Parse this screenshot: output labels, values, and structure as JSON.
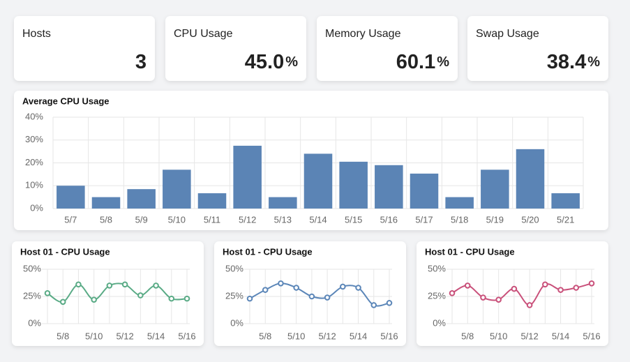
{
  "cards": [
    {
      "title": "Hosts",
      "value": "3"
    },
    {
      "title": "CPU Usage",
      "value": "45.0",
      "unit": "%"
    },
    {
      "title": "Memory Usage",
      "value": "60.1",
      "unit": "%"
    },
    {
      "title": "Swap Usage",
      "value": "38.4",
      "unit": "%"
    }
  ],
  "chart_data": [
    {
      "type": "bar",
      "title": "Average CPU Usage",
      "categories": [
        "5/7",
        "5/8",
        "5/9",
        "5/10",
        "5/11",
        "5/12",
        "5/13",
        "5/14",
        "5/15",
        "5/16",
        "5/17",
        "5/18",
        "5/19",
        "5/20",
        "5/21"
      ],
      "values": [
        10,
        5,
        8.5,
        17,
        6.7,
        27.5,
        5,
        24,
        20.5,
        19,
        15.3,
        5,
        17,
        26,
        6.7
      ],
      "color": "#5b84b5",
      "ylim": [
        0,
        40
      ],
      "yticks": [
        {
          "value": 0,
          "label": "0%"
        },
        {
          "value": 10,
          "label": "10%"
        },
        {
          "value": 20,
          "label": "20%"
        },
        {
          "value": 30,
          "label": "30%"
        },
        {
          "value": 40,
          "label": "40%"
        }
      ],
      "grid": true
    },
    {
      "type": "line",
      "title": "Host 01 - CPU Usage",
      "categories": [
        null,
        "5/8",
        null,
        "5/10",
        null,
        "5/12",
        null,
        "5/14",
        null,
        "5/16"
      ],
      "values": [
        28,
        20,
        36,
        22,
        35,
        36,
        26,
        35,
        23,
        23
      ],
      "color": "#5aab86",
      "ylim": [
        0,
        50
      ],
      "yticks": [
        {
          "value": 0,
          "label": "0%"
        },
        {
          "value": 25,
          "label": "25%"
        },
        {
          "value": 50,
          "label": "50%"
        }
      ],
      "grid": true
    },
    {
      "type": "line",
      "title": "Host 01 - CPU Usage",
      "categories": [
        null,
        "5/8",
        null,
        "5/10",
        null,
        "5/12",
        null,
        "5/14",
        null,
        "5/16"
      ],
      "values": [
        23,
        31,
        37,
        33,
        25,
        24,
        34,
        33,
        17,
        19
      ],
      "color": "#5b86b8",
      "ylim": [
        0,
        50
      ],
      "yticks": [
        {
          "value": 0,
          "label": "0%"
        },
        {
          "value": 25,
          "label": "25%"
        },
        {
          "value": 50,
          "label": "50%"
        }
      ],
      "grid": true
    },
    {
      "type": "line",
      "title": "Host 01 - CPU Usage",
      "categories": [
        null,
        "5/8",
        null,
        "5/10",
        null,
        "5/12",
        null,
        "5/14",
        null,
        "5/16"
      ],
      "values": [
        28,
        35,
        24,
        22,
        32,
        17,
        36,
        31,
        33,
        37
      ],
      "color": "#c9507a",
      "ylim": [
        0,
        50
      ],
      "yticks": [
        {
          "value": 0,
          "label": "0%"
        },
        {
          "value": 25,
          "label": "25%"
        },
        {
          "value": 50,
          "label": "50%"
        }
      ],
      "grid": true
    }
  ]
}
